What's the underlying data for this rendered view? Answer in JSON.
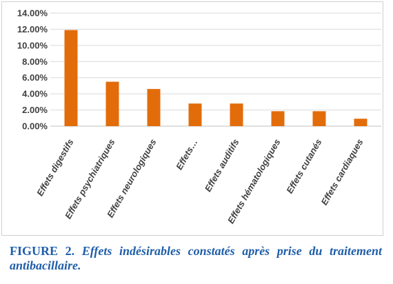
{
  "chart_data": {
    "type": "bar",
    "categories": [
      "Effets digestifs",
      "Effets psychiatriques",
      "Effets neurologiques",
      "Effets…",
      "Effets auditifs",
      "Effets hématologiques",
      "Effets cutanés",
      "Effets cardiaques"
    ],
    "values": [
      11.9,
      5.5,
      4.6,
      2.8,
      2.8,
      1.85,
      1.85,
      0.92
    ],
    "ylim": [
      0,
      14
    ],
    "yticks": [
      "0.00%",
      "2.00%",
      "4.00%",
      "6.00%",
      "8.00%",
      "10.00%",
      "12.00%",
      "14.00%"
    ],
    "unit": "%",
    "bar_color": "#e36c0a",
    "grid": true,
    "legend": "none"
  },
  "caption": {
    "label": "FIGURE 2.",
    "text": "Effets indésirables constatés après prise du traitement antibacillaire."
  }
}
